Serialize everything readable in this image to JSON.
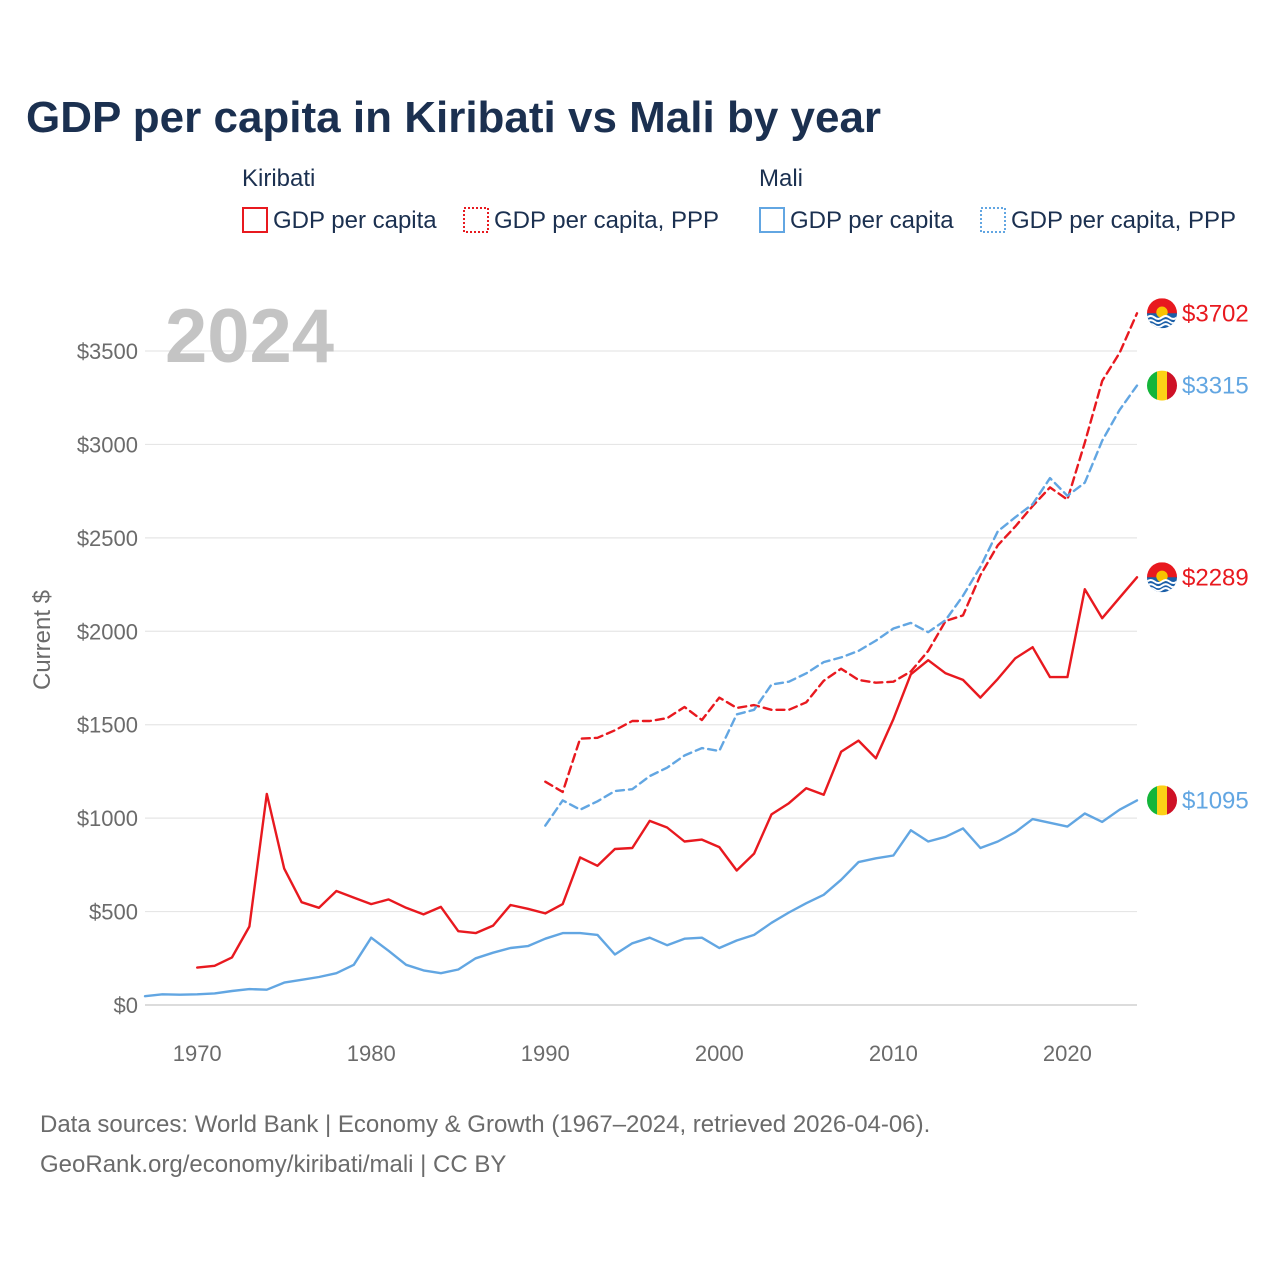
{
  "chart_data": {
    "type": "line",
    "title": "GDP per capita in Kiribati vs Mali by year",
    "ylabel": "Current $",
    "xlabel": "",
    "xlim": [
      1967,
      2024
    ],
    "ylim": [
      0,
      3800
    ],
    "yticks": [
      0,
      500,
      1000,
      1500,
      2000,
      2500,
      3000,
      3500
    ],
    "ytick_labels": [
      "$0",
      "$500",
      "$1000",
      "$1500",
      "$2000",
      "$2500",
      "$3000",
      "$3500"
    ],
    "xticks": [
      1970,
      1980,
      1990,
      2000,
      2010,
      2020
    ],
    "xtick_labels": [
      "1970",
      "1980",
      "1990",
      "2000",
      "2010",
      "2020"
    ],
    "grid": true,
    "current_year_label": "2024",
    "legend": {
      "groups": [
        {
          "country": "Kiribati",
          "entries": [
            "GDP per capita",
            "GDP per capita, PPP"
          ]
        },
        {
          "country": "Mali",
          "entries": [
            "GDP per capita",
            "GDP per capita, PPP"
          ]
        }
      ]
    },
    "colors": {
      "kiribati": "#e8191f",
      "mali": "#62a6e2"
    },
    "series": [
      {
        "name": "Kiribati GDP per capita",
        "country": "kiribati",
        "dash": false,
        "end_label": "$2289",
        "x": [
          1970,
          1971,
          1972,
          1973,
          1974,
          1975,
          1976,
          1977,
          1978,
          1979,
          1980,
          1981,
          1982,
          1983,
          1984,
          1985,
          1986,
          1987,
          1988,
          1989,
          1990,
          1991,
          1992,
          1993,
          1994,
          1995,
          1996,
          1997,
          1998,
          1999,
          2000,
          2001,
          2002,
          2003,
          2004,
          2005,
          2006,
          2007,
          2008,
          2009,
          2010,
          2011,
          2012,
          2013,
          2014,
          2015,
          2016,
          2017,
          2018,
          2019,
          2020,
          2021,
          2022,
          2023,
          2024
        ],
        "values": [
          200,
          210,
          255,
          420,
          1130,
          730,
          550,
          520,
          610,
          575,
          540,
          565,
          520,
          485,
          525,
          395,
          385,
          425,
          535,
          515,
          490,
          540,
          790,
          745,
          835,
          840,
          985,
          950,
          875,
          885,
          845,
          720,
          810,
          1020,
          1080,
          1160,
          1125,
          1355,
          1415,
          1320,
          1530,
          1770,
          1845,
          1775,
          1740,
          1645,
          1745,
          1855,
          1915,
          1755,
          1755,
          2225,
          2070,
          2180,
          2289
        ]
      },
      {
        "name": "Kiribati GDP per capita, PPP",
        "country": "kiribati",
        "dash": true,
        "end_label": "$3702",
        "x": [
          1990,
          1991,
          1992,
          1993,
          1994,
          1995,
          1996,
          1997,
          1998,
          1999,
          2000,
          2001,
          2002,
          2003,
          2004,
          2005,
          2006,
          2007,
          2008,
          2009,
          2010,
          2011,
          2012,
          2013,
          2014,
          2015,
          2016,
          2017,
          2018,
          2019,
          2020,
          2021,
          2022,
          2023,
          2024
        ],
        "values": [
          1195,
          1140,
          1425,
          1430,
          1470,
          1520,
          1520,
          1535,
          1595,
          1525,
          1645,
          1590,
          1605,
          1580,
          1580,
          1620,
          1735,
          1800,
          1740,
          1725,
          1730,
          1785,
          1895,
          2055,
          2085,
          2300,
          2460,
          2560,
          2670,
          2770,
          2705,
          3010,
          3340,
          3490,
          3702
        ]
      },
      {
        "name": "Mali GDP per capita",
        "country": "mali",
        "dash": false,
        "end_label": "$1095",
        "x": [
          1967,
          1968,
          1969,
          1970,
          1971,
          1972,
          1973,
          1974,
          1975,
          1976,
          1977,
          1978,
          1979,
          1980,
          1981,
          1982,
          1983,
          1984,
          1985,
          1986,
          1987,
          1988,
          1989,
          1990,
          1991,
          1992,
          1993,
          1994,
          1995,
          1996,
          1997,
          1998,
          1999,
          2000,
          2001,
          2002,
          2003,
          2004,
          2005,
          2006,
          2007,
          2008,
          2009,
          2010,
          2011,
          2012,
          2013,
          2014,
          2015,
          2016,
          2017,
          2018,
          2019,
          2020,
          2021,
          2022,
          2023,
          2024
        ],
        "values": [
          47,
          57,
          55,
          57,
          62,
          75,
          85,
          82,
          120,
          135,
          150,
          170,
          215,
          360,
          290,
          215,
          185,
          170,
          190,
          250,
          280,
          305,
          315,
          355,
          385,
          385,
          375,
          270,
          330,
          360,
          320,
          355,
          360,
          305,
          345,
          375,
          440,
          495,
          545,
          590,
          670,
          765,
          785,
          800,
          935,
          875,
          900,
          945,
          840,
          875,
          925,
          995,
          975,
          955,
          1025,
          980,
          1045,
          1095
        ]
      },
      {
        "name": "Mali GDP per capita, PPP",
        "country": "mali",
        "dash": true,
        "end_label": "$3315",
        "x": [
          1990,
          1991,
          1992,
          1993,
          1994,
          1995,
          1996,
          1997,
          1998,
          1999,
          2000,
          2001,
          2002,
          2003,
          2004,
          2005,
          2006,
          2007,
          2008,
          2009,
          2010,
          2011,
          2012,
          2013,
          2014,
          2015,
          2016,
          2017,
          2018,
          2019,
          2020,
          2021,
          2022,
          2023,
          2024
        ],
        "values": [
          960,
          1095,
          1045,
          1090,
          1145,
          1155,
          1225,
          1270,
          1335,
          1375,
          1360,
          1555,
          1580,
          1715,
          1730,
          1775,
          1835,
          1860,
          1895,
          1950,
          2015,
          2045,
          1995,
          2060,
          2190,
          2345,
          2535,
          2610,
          2680,
          2820,
          2725,
          2795,
          3020,
          3185,
          3315
        ]
      }
    ]
  },
  "footer": {
    "source_line": "Data sources: World Bank | Economy & Growth (1967–2024, retrieved 2026-04-06).",
    "credit_line": "GeoRank.org/economy/kiribati/mali | CC BY"
  },
  "flags": {
    "kiribati": {
      "top": "#e8191f",
      "sun": "#f8c300",
      "bottom": "#1b5fa8",
      "waves": "#ffffff"
    },
    "mali": {
      "stripes": [
        "#14b53a",
        "#fcd116",
        "#ce1126"
      ]
    }
  }
}
